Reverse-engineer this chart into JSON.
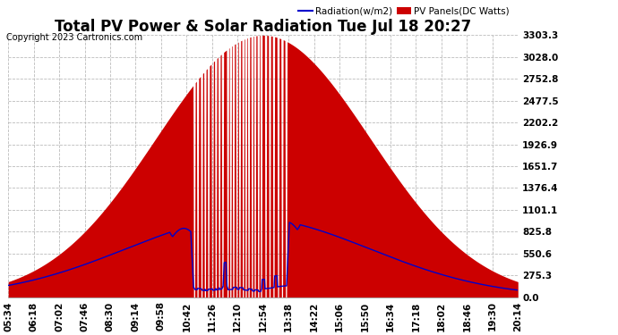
{
  "title": "Total PV Power & Solar Radiation Tue Jul 18 20:27",
  "copyright": "Copyright 2023 Cartronics.com",
  "legend_radiation": "Radiation(w/m2)",
  "legend_pv": "PV Panels(DC Watts)",
  "ymax": 3303.3,
  "yticks": [
    0.0,
    275.3,
    550.6,
    825.8,
    1101.1,
    1376.4,
    1651.7,
    1926.9,
    2202.2,
    2477.5,
    2752.8,
    3028.0,
    3303.3
  ],
  "background_color": "#ffffff",
  "grid_color": "#bbbbbb",
  "pv_color": "#cc0000",
  "radiation_color": "#0000cc",
  "title_fontsize": 12,
  "axis_fontsize": 7.5,
  "copyright_fontsize": 7,
  "xtick_labels": [
    "05:34",
    "06:18",
    "07:02",
    "07:46",
    "08:30",
    "09:14",
    "09:58",
    "10:42",
    "11:26",
    "12:10",
    "12:54",
    "13:38",
    "14:22",
    "15:06",
    "15:50",
    "16:34",
    "17:18",
    "18:02",
    "18:46",
    "19:30",
    "20:14"
  ]
}
